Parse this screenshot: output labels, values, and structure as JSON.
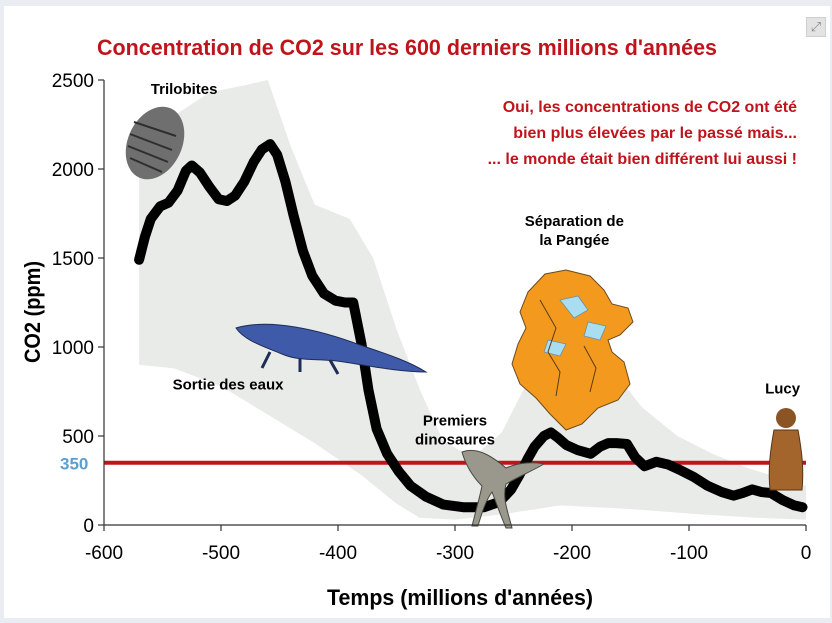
{
  "ui": {
    "expand_icon": "expand-icon"
  },
  "colors": {
    "title": "#c0141c",
    "annotation": "#c0141c",
    "reference_line": "#c0141c",
    "reference_label": "#5b9fd0",
    "envelope": "#e8ebe7",
    "series": "#000000",
    "pangea_land": "#f39a1e",
    "pangea_sea": "#a9ddf0"
  },
  "chart_data": {
    "type": "line",
    "title": "Concentration de CO2 sur les 600 derniers millions d'années",
    "xlabel": "Temps (millions d'années)",
    "ylabel": "CO2 (ppm)",
    "xlim": [
      -600,
      0
    ],
    "ylim": [
      0,
      2500
    ],
    "x_ticks": [
      -600,
      -500,
      -400,
      -300,
      -200,
      -100,
      0
    ],
    "y_ticks": [
      0,
      500,
      1000,
      1500,
      2000,
      2500
    ],
    "grid": false,
    "series": [
      {
        "values": [
          {
            "x": -570,
            "y": 1490
          },
          {
            "x": -565,
            "y": 1620
          },
          {
            "x": -560,
            "y": 1720
          },
          {
            "x": -552,
            "y": 1790
          },
          {
            "x": -545,
            "y": 1810
          },
          {
            "x": -537,
            "y": 1880
          },
          {
            "x": -530,
            "y": 1990
          },
          {
            "x": -525,
            "y": 2020
          },
          {
            "x": -518,
            "y": 1980
          },
          {
            "x": -510,
            "y": 1900
          },
          {
            "x": -502,
            "y": 1830
          },
          {
            "x": -495,
            "y": 1820
          },
          {
            "x": -488,
            "y": 1850
          },
          {
            "x": -480,
            "y": 1930
          },
          {
            "x": -472,
            "y": 2040
          },
          {
            "x": -465,
            "y": 2110
          },
          {
            "x": -458,
            "y": 2140
          },
          {
            "x": -452,
            "y": 2080
          },
          {
            "x": -445,
            "y": 1930
          },
          {
            "x": -438,
            "y": 1740
          },
          {
            "x": -430,
            "y": 1540
          },
          {
            "x": -422,
            "y": 1400
          },
          {
            "x": -412,
            "y": 1300
          },
          {
            "x": -402,
            "y": 1260
          },
          {
            "x": -394,
            "y": 1250
          },
          {
            "x": -387,
            "y": 1250
          },
          {
            "x": -380,
            "y": 1020
          },
          {
            "x": -374,
            "y": 760
          },
          {
            "x": -367,
            "y": 540
          },
          {
            "x": -358,
            "y": 400
          },
          {
            "x": -348,
            "y": 300
          },
          {
            "x": -338,
            "y": 220
          },
          {
            "x": -325,
            "y": 160
          },
          {
            "x": -310,
            "y": 115
          },
          {
            "x": -293,
            "y": 100
          },
          {
            "x": -275,
            "y": 100
          },
          {
            "x": -262,
            "y": 130
          },
          {
            "x": -252,
            "y": 200
          },
          {
            "x": -245,
            "y": 280
          },
          {
            "x": -238,
            "y": 370
          },
          {
            "x": -232,
            "y": 440
          },
          {
            "x": -224,
            "y": 500
          },
          {
            "x": -218,
            "y": 520
          },
          {
            "x": -212,
            "y": 490
          },
          {
            "x": -205,
            "y": 450
          },
          {
            "x": -195,
            "y": 420
          },
          {
            "x": -184,
            "y": 400
          },
          {
            "x": -176,
            "y": 440
          },
          {
            "x": -169,
            "y": 460
          },
          {
            "x": -162,
            "y": 460
          },
          {
            "x": -153,
            "y": 455
          },
          {
            "x": -146,
            "y": 380
          },
          {
            "x": -138,
            "y": 330
          },
          {
            "x": -128,
            "y": 355
          },
          {
            "x": -118,
            "y": 340
          },
          {
            "x": -108,
            "y": 310
          },
          {
            "x": -96,
            "y": 270
          },
          {
            "x": -84,
            "y": 220
          },
          {
            "x": -72,
            "y": 185
          },
          {
            "x": -62,
            "y": 165
          },
          {
            "x": -54,
            "y": 180
          },
          {
            "x": -46,
            "y": 200
          },
          {
            "x": -38,
            "y": 185
          },
          {
            "x": -30,
            "y": 180
          },
          {
            "x": -20,
            "y": 140
          },
          {
            "x": -10,
            "y": 110
          },
          {
            "x": -3,
            "y": 100
          }
        ]
      }
    ],
    "uncertainty_envelope": {
      "upper": [
        {
          "x": -570,
          "y": 1950
        },
        {
          "x": -540,
          "y": 2300
        },
        {
          "x": -510,
          "y": 2430
        },
        {
          "x": -480,
          "y": 2470
        },
        {
          "x": -460,
          "y": 2500
        },
        {
          "x": -440,
          "y": 2120
        },
        {
          "x": -420,
          "y": 1800
        },
        {
          "x": -390,
          "y": 1720
        },
        {
          "x": -370,
          "y": 1500
        },
        {
          "x": -350,
          "y": 1100
        },
        {
          "x": -330,
          "y": 760
        },
        {
          "x": -310,
          "y": 470
        },
        {
          "x": -285,
          "y": 380
        },
        {
          "x": -260,
          "y": 520
        },
        {
          "x": -240,
          "y": 780
        },
        {
          "x": -220,
          "y": 960
        },
        {
          "x": -195,
          "y": 900
        },
        {
          "x": -165,
          "y": 870
        },
        {
          "x": -140,
          "y": 660
        },
        {
          "x": -110,
          "y": 500
        },
        {
          "x": -80,
          "y": 400
        },
        {
          "x": -50,
          "y": 320
        },
        {
          "x": -20,
          "y": 260
        },
        {
          "x": 0,
          "y": 220
        }
      ],
      "lower": [
        {
          "x": 0,
          "y": 30
        },
        {
          "x": -40,
          "y": 40
        },
        {
          "x": -90,
          "y": 60
        },
        {
          "x": -150,
          "y": 90
        },
        {
          "x": -210,
          "y": 110
        },
        {
          "x": -260,
          "y": 60
        },
        {
          "x": -300,
          "y": 30
        },
        {
          "x": -330,
          "y": 40
        },
        {
          "x": -350,
          "y": 120
        },
        {
          "x": -380,
          "y": 280
        },
        {
          "x": -420,
          "y": 460
        },
        {
          "x": -460,
          "y": 620
        },
        {
          "x": -500,
          "y": 780
        },
        {
          "x": -540,
          "y": 880
        },
        {
          "x": -570,
          "y": 900
        }
      ]
    },
    "reference_line": {
      "y": 350,
      "label": "350"
    },
    "annotations": [
      {
        "id": "trilobites",
        "text": "Trilobites",
        "x": -560,
        "y": 2420
      },
      {
        "id": "sortie",
        "text": "Sortie des eaux",
        "x": -494,
        "y": 760
      },
      {
        "id": "dinosaures",
        "lines": [
          "Premiers",
          "dinosaures"
        ],
        "x": -300,
        "y": 560
      },
      {
        "id": "pangee",
        "lines": [
          "Séparation de",
          "la Pangée"
        ],
        "x": -198,
        "y": 1680
      },
      {
        "id": "lucy",
        "text": "Lucy",
        "x": -20,
        "y": 740
      }
    ],
    "message_lines": [
      "Oui, les concentrations de CO2 ont été",
      "bien plus élevées par le passé mais...",
      "... le monde était bien différent lui aussi !"
    ]
  }
}
